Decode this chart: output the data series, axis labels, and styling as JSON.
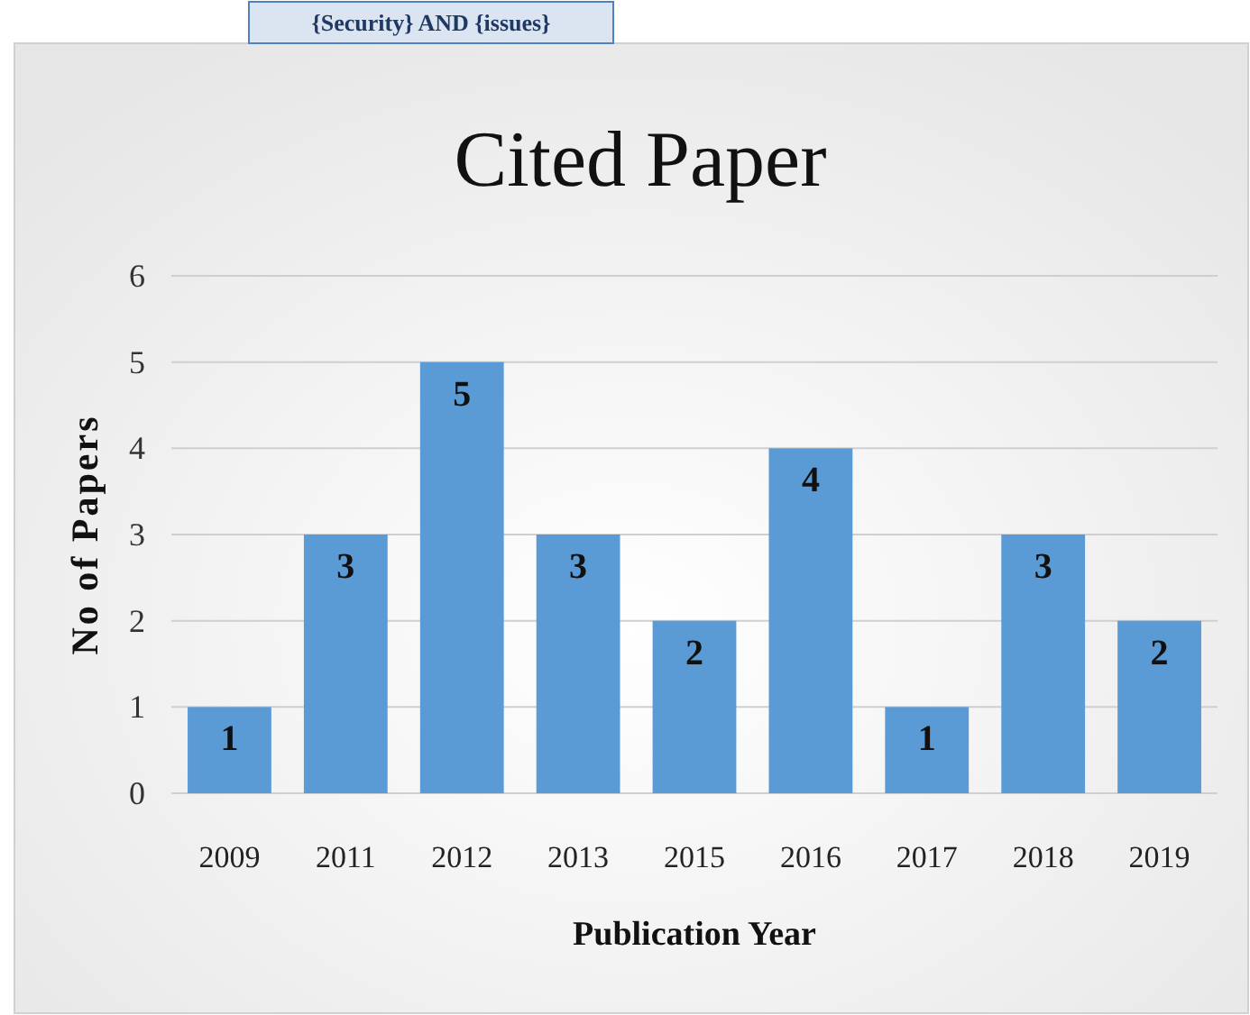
{
  "chart_data": {
    "type": "bar",
    "title": "Cited Paper",
    "subtitle": "{Security} AND {issues}",
    "xlabel": "Publication Year",
    "ylabel": "No of Papers",
    "categories": [
      "2009",
      "2011",
      "2012",
      "2013",
      "2015",
      "2016",
      "2017",
      "2018",
      "2019"
    ],
    "values": [
      1,
      3,
      5,
      3,
      2,
      4,
      1,
      3,
      2
    ],
    "color": "#5b9bd5",
    "ylim": [
      0,
      6
    ],
    "yticks": [
      0,
      1,
      2,
      3,
      4,
      5,
      6
    ],
    "grid": "y",
    "data_labels": true
  }
}
